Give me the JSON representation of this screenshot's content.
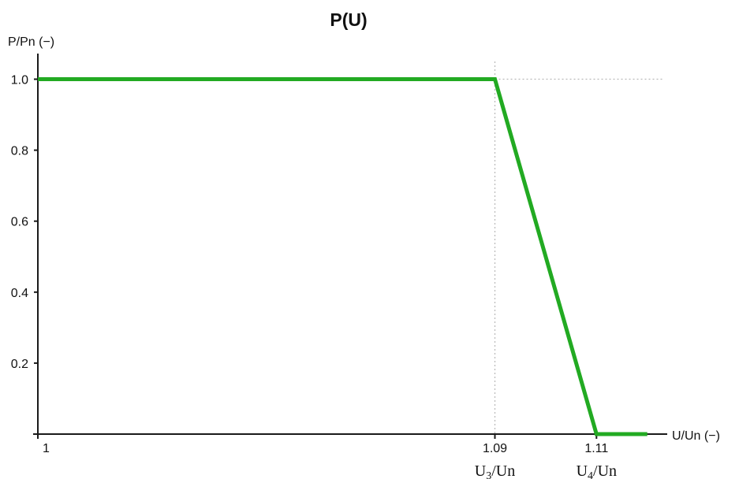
{
  "chart_data": {
    "type": "line",
    "title": "P(U)",
    "xlabel": "U/Un (−)",
    "ylabel": "P/Pn (−)",
    "xlim": [
      1.0,
      1.123
    ],
    "ylim": [
      0,
      1.05
    ],
    "x_ticks": [
      "1",
      "1.09",
      "1.11"
    ],
    "x_tick_values": [
      1.0,
      1.09,
      1.11
    ],
    "x_tick_sublabels": [
      {
        "base": "U",
        "sub": "3",
        "rest": "/Un"
      },
      {
        "base": "U",
        "sub": "4",
        "rest": "/Un"
      }
    ],
    "y_ticks": [
      "0.2",
      "0.4",
      "0.6",
      "0.8",
      "1.0"
    ],
    "y_tick_values": [
      0.2,
      0.4,
      0.6,
      0.8,
      1.0
    ],
    "series": [
      {
        "x": [
          1.0,
          1.09,
          1.11,
          1.12
        ],
        "y": [
          1.0,
          1.0,
          0.0,
          0.0
        ],
        "color": "#22aa22"
      }
    ],
    "reference_lines": [
      {
        "orientation": "vertical",
        "x": 1.09,
        "style": "dotted"
      },
      {
        "orientation": "horizontal",
        "y": 1.0,
        "style": "dotted"
      }
    ],
    "grid": false,
    "colors": {
      "series": "#22aa22",
      "axis": "#1a1a1a",
      "reference": "#b8b8b8",
      "text": "#111111"
    }
  }
}
